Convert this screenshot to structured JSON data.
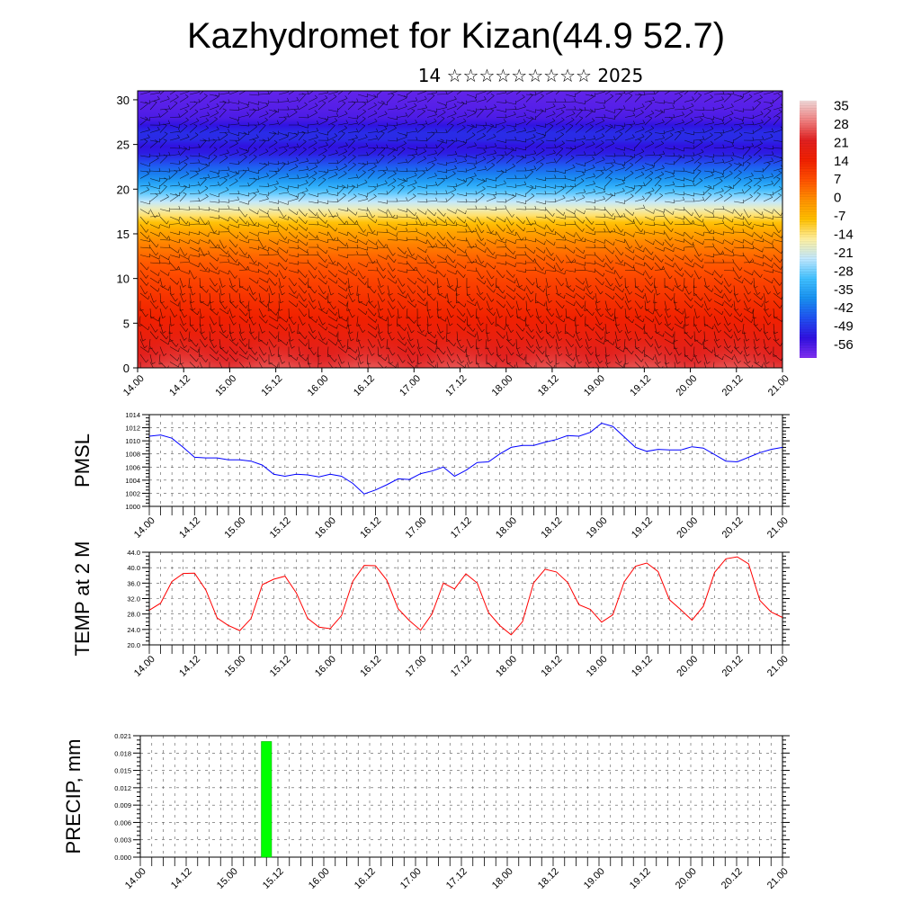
{
  "header": {
    "title": "Kazhydromet for Kizan(44.9 52.7)",
    "subtitle": "14 ☆☆☆☆☆☆☆☆☆ 2025"
  },
  "chart_data": [
    {
      "type": "heatmap",
      "name": "temperature-wind-cross-section",
      "x_ticks": [
        "14.00",
        "14.12",
        "15.00",
        "15.12",
        "16.00",
        "16.12",
        "17.00",
        "17.12",
        "18.00",
        "18.12",
        "19.00",
        "19.12",
        "20.00",
        "20.12",
        "21.00"
      ],
      "y_ticks": [
        0,
        5,
        10,
        15,
        20,
        25,
        30
      ],
      "ylim": [
        0,
        31
      ],
      "colorbar": {
        "labels": [
          "35",
          "28",
          "21",
          "14",
          "7",
          "0",
          "-7",
          "-14",
          "-21",
          "-28",
          "-35",
          "-42",
          "-49",
          "-56"
        ],
        "range": [
          -63,
          42
        ],
        "colors": [
          "#f0d8d8",
          "#f08080",
          "#e02020",
          "#f02000",
          "#ff5000",
          "#ff9000",
          "#ffc000",
          "#fff0a0",
          "#c0e8ff",
          "#40c0ff",
          "#1890f0",
          "#2050f0",
          "#3010e0",
          "#8030f0"
        ]
      },
      "profile": {
        "heights_km": [
          0,
          3,
          6,
          9,
          12,
          14,
          16,
          17.5,
          19,
          20.5,
          22.5,
          24.5,
          26,
          28,
          31
        ],
        "temps_c": [
          28,
          22,
          17,
          13,
          8,
          3,
          -5,
          -15,
          -25,
          -35,
          -45,
          -56,
          -50,
          -58,
          -60
        ]
      },
      "warm_cells_day": [
        14.5,
        15.5,
        16.5,
        17.5,
        18.5,
        19.5,
        20.5
      ],
      "barbs": true
    },
    {
      "type": "line",
      "name": "pmsl",
      "ylabel": "PMSL",
      "color": "#0000ff",
      "ylim": [
        1000,
        1014
      ],
      "y_ticks": [
        "1000",
        "1002",
        "1004",
        "1006",
        "1008",
        "1010",
        "1012",
        "1014"
      ],
      "x_ticks": [
        "14.00",
        "14.12",
        "15.00",
        "15.12",
        "16.00",
        "16.12",
        "17.00",
        "17.12",
        "18.00",
        "18.12",
        "19.00",
        "19.12",
        "20.00",
        "20.12",
        "21.00"
      ],
      "x": [
        14.0,
        14.125,
        14.25,
        14.375,
        14.5,
        14.625,
        14.75,
        14.875,
        15.0,
        15.125,
        15.25,
        15.375,
        15.5,
        15.625,
        15.75,
        15.875,
        16.0,
        16.125,
        16.25,
        16.375,
        16.5,
        16.625,
        16.75,
        16.875,
        17.0,
        17.125,
        17.25,
        17.375,
        17.5,
        17.625,
        17.75,
        17.875,
        18.0,
        18.125,
        18.25,
        18.375,
        18.5,
        18.625,
        18.75,
        18.875,
        19.0,
        19.125,
        19.25,
        19.375,
        19.5,
        19.625,
        19.75,
        19.875,
        20.0,
        20.125,
        20.25,
        20.375,
        20.5,
        20.625,
        20.75,
        20.875,
        21.0
      ],
      "values": [
        1010.7,
        1010.9,
        1010.4,
        1009.0,
        1007.5,
        1007.4,
        1007.4,
        1007.1,
        1007.1,
        1006.9,
        1006.3,
        1004.9,
        1004.6,
        1004.9,
        1004.8,
        1004.5,
        1004.9,
        1004.6,
        1003.5,
        1001.9,
        1002.5,
        1003.3,
        1004.2,
        1004.1,
        1005.0,
        1005.4,
        1006.0,
        1004.6,
        1005.5,
        1006.7,
        1006.8,
        1008.0,
        1009.0,
        1009.3,
        1009.3,
        1009.8,
        1010.2,
        1010.8,
        1010.7,
        1011.3,
        1012.7,
        1012.2,
        1010.6,
        1009.0,
        1008.4,
        1008.7,
        1008.6,
        1008.6,
        1009.1,
        1008.9,
        1007.9,
        1006.9,
        1006.8,
        1007.5,
        1008.2,
        1008.7,
        1009.0
      ]
    },
    {
      "type": "line",
      "name": "temp-2m",
      "ylabel": "TEMP at 2 M",
      "color": "#ff0000",
      "ylim": [
        20,
        44
      ],
      "y_ticks": [
        "20.0",
        "24.0",
        "28.0",
        "32.0",
        "36.0",
        "40.0",
        "44.0"
      ],
      "x_ticks": [
        "14.00",
        "14.12",
        "15.00",
        "15.12",
        "16.00",
        "16.12",
        "17.00",
        "17.12",
        "18.00",
        "18.12",
        "19.00",
        "19.12",
        "20.00",
        "20.12",
        "21.00"
      ],
      "x": [
        14.0,
        14.125,
        14.25,
        14.375,
        14.5,
        14.625,
        14.75,
        14.875,
        15.0,
        15.125,
        15.25,
        15.375,
        15.5,
        15.625,
        15.75,
        15.875,
        16.0,
        16.125,
        16.25,
        16.375,
        16.5,
        16.625,
        16.75,
        16.875,
        17.0,
        17.125,
        17.25,
        17.375,
        17.5,
        17.625,
        17.75,
        17.875,
        18.0,
        18.125,
        18.25,
        18.375,
        18.5,
        18.625,
        18.75,
        18.875,
        19.0,
        19.125,
        19.25,
        19.375,
        19.5,
        19.625,
        19.75,
        19.875,
        20.0,
        20.125,
        20.25,
        20.375,
        20.5,
        20.625,
        20.75,
        20.875,
        21.0
      ],
      "values": [
        29.0,
        30.8,
        36.4,
        38.5,
        38.6,
        34.2,
        27.0,
        25.0,
        23.7,
        26.8,
        35.6,
        37.0,
        37.8,
        33.5,
        26.9,
        24.6,
        24.2,
        27.6,
        36.5,
        40.6,
        40.5,
        36.8,
        29.4,
        26.3,
        23.8,
        28.0,
        36.0,
        34.5,
        38.4,
        36.0,
        28.4,
        25.0,
        22.6,
        26.0,
        36.1,
        39.6,
        38.9,
        36.2,
        30.4,
        29.2,
        25.9,
        27.8,
        36.3,
        40.4,
        41.2,
        39.0,
        31.7,
        29.1,
        26.4,
        30.0,
        38.8,
        42.3,
        42.8,
        41.0,
        31.5,
        28.5,
        27.1
      ]
    },
    {
      "type": "bar",
      "name": "precip",
      "ylabel": "PRECIP, mm",
      "color": "#00ff00",
      "ylim": [
        0,
        0.021
      ],
      "y_ticks": [
        "0.000",
        "0.003",
        "0.006",
        "0.009",
        "0.012",
        "0.015",
        "0.018",
        "0.021"
      ],
      "x_ticks": [
        "14.00",
        "14.12",
        "15.00",
        "15.12",
        "16.00",
        "16.12",
        "17.00",
        "17.12",
        "18.00",
        "18.12",
        "19.00",
        "19.12",
        "20.00",
        "20.12",
        "21.00"
      ],
      "bars": [
        {
          "x": 15.375,
          "value": 0.02
        }
      ]
    }
  ]
}
